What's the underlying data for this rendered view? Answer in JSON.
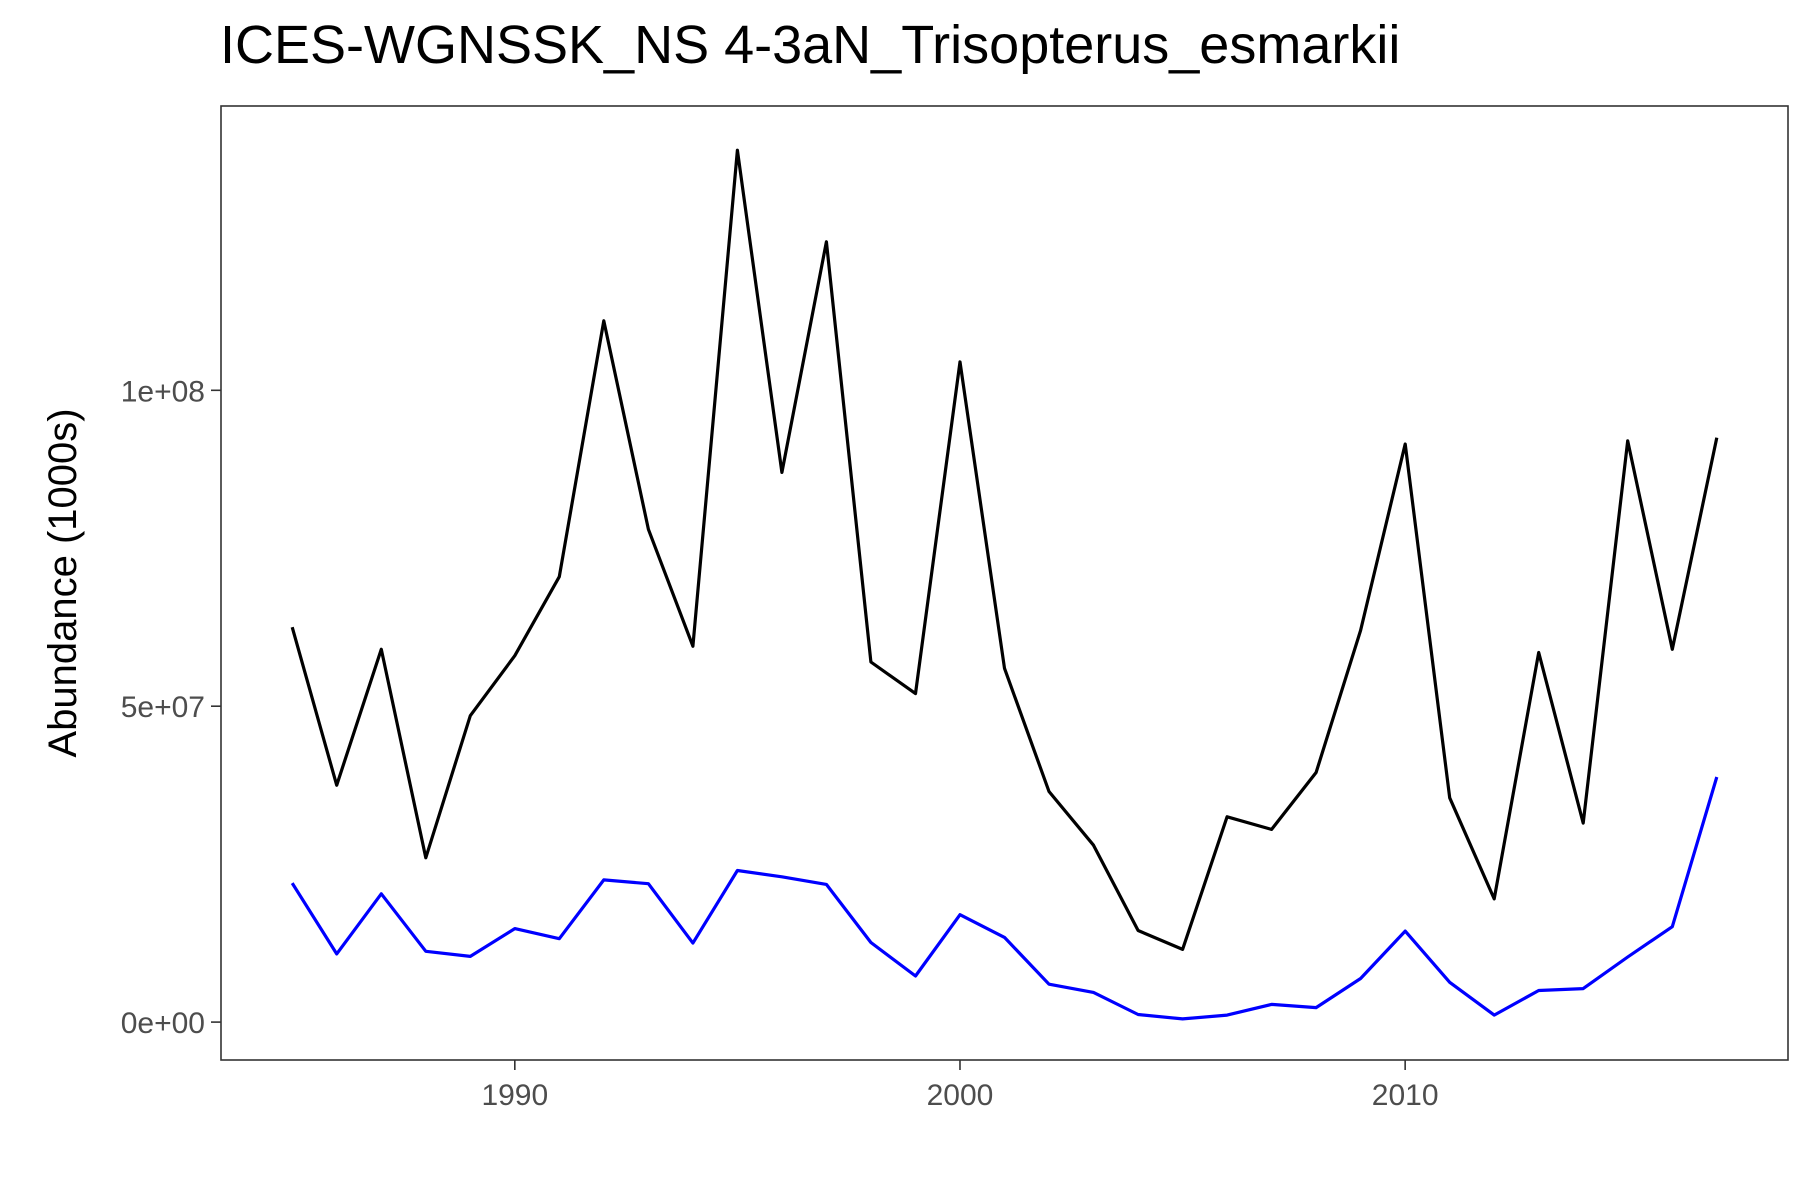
{
  "chart_data": {
    "type": "line",
    "title": "ICES-WGNSSK_NS 4-3aN_Trisopterus_esmarkii",
    "xlabel": "",
    "ylabel": "Abundance (1000s)",
    "xlim": [
      1983.4,
      2018.6
    ],
    "ylim": [
      -6000000,
      145000000
    ],
    "x_ticks": [
      1990,
      2000,
      2010
    ],
    "x_tick_labels": [
      "1990",
      "2000",
      "2010"
    ],
    "y_ticks": [
      0,
      50000000,
      100000000
    ],
    "y_tick_labels": [
      "0e+00",
      "5e+07",
      "1e+08"
    ],
    "grid": false,
    "legend": "none",
    "x": [
      1985,
      1986,
      1987,
      1988,
      1989,
      1990,
      1991,
      1992,
      1993,
      1994,
      1995,
      1996,
      1997,
      1998,
      1999,
      2000,
      2001,
      2002,
      2003,
      2004,
      2005,
      2006,
      2007,
      2008,
      2009,
      2010,
      2011,
      2012,
      2013,
      2014,
      2015,
      2016,
      2017
    ],
    "series": [
      {
        "color": "#000000",
        "values": [
          62500000,
          37500000,
          59000000,
          26000000,
          48500000,
          58000000,
          70500000,
          111000000,
          78000000,
          59500000,
          138000000,
          87000000,
          123500000,
          57000000,
          52000000,
          104500000,
          56000000,
          36500000,
          28000000,
          14500000,
          11500000,
          32500000,
          30500000,
          39500000,
          62000000,
          91500000,
          35500000,
          19500000,
          58500000,
          31500000,
          92000000,
          59000000,
          92500000
        ]
      },
      {
        "color": "#0000ff",
        "values": [
          22000000,
          10800000,
          20300000,
          11200000,
          10400000,
          14800000,
          13200000,
          22500000,
          21900000,
          12500000,
          24000000,
          23000000,
          21800000,
          12600000,
          7300000,
          17000000,
          13400000,
          6000000,
          4700000,
          1200000,
          500000,
          1100000,
          2800000,
          2300000,
          6900000,
          14400000,
          6300000,
          1100000,
          5000000,
          5300000,
          10300000,
          15100000,
          38800000
        ]
      }
    ]
  }
}
